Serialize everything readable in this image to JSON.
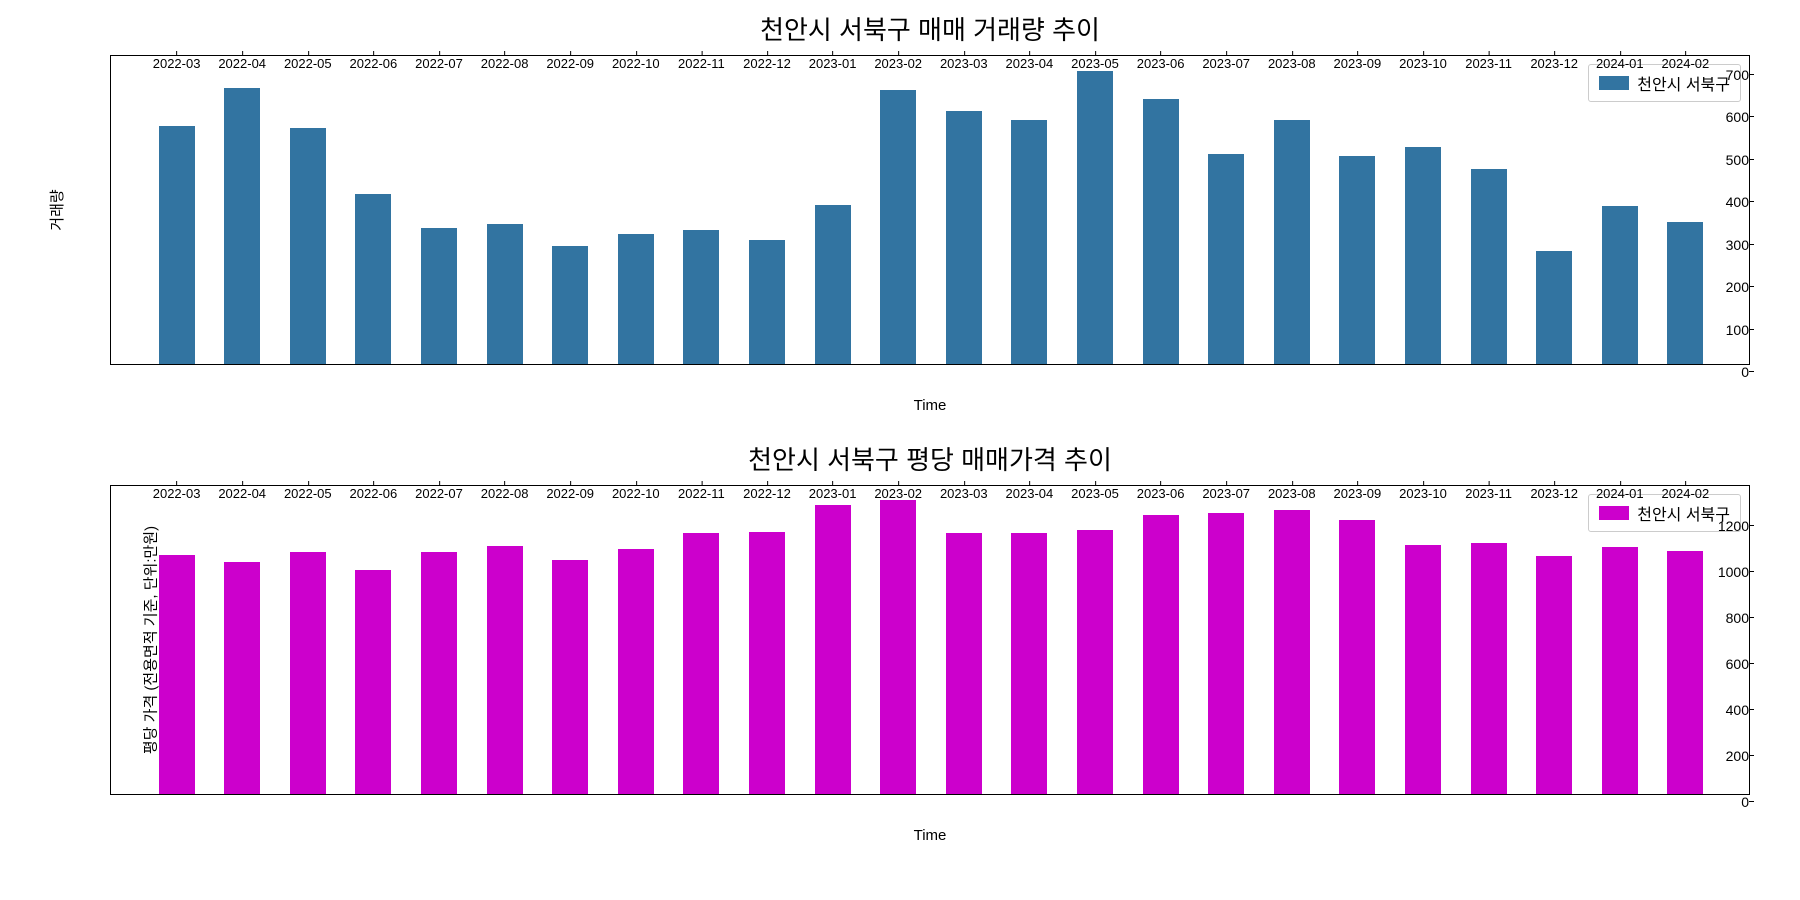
{
  "chart1": {
    "type": "bar",
    "title": "천안시 서북구 매매 거래량 추이",
    "ylabel": "거래량",
    "xlabel": "Time",
    "legend_label": "천안시 서북구",
    "bar_color": "#3274a1",
    "background_color": "#ffffff",
    "border_color": "#000000",
    "title_fontsize": 26,
    "label_fontsize": 15,
    "tick_fontsize": 14,
    "ylim": [
      0,
      730
    ],
    "yticks": [
      0,
      100,
      200,
      300,
      400,
      500,
      600,
      700
    ],
    "bar_width": 0.55,
    "categories": [
      "2022-03",
      "2022-04",
      "2022-05",
      "2022-06",
      "2022-07",
      "2022-08",
      "2022-09",
      "2022-10",
      "2022-11",
      "2022-12",
      "2023-01",
      "2023-02",
      "2023-03",
      "2023-04",
      "2023-05",
      "2023-06",
      "2023-07",
      "2023-08",
      "2023-09",
      "2023-10",
      "2023-11",
      "2023-12",
      "2024-01",
      "2024-02"
    ],
    "values": [
      560,
      650,
      555,
      400,
      320,
      330,
      278,
      305,
      315,
      293,
      375,
      645,
      595,
      575,
      690,
      625,
      495,
      575,
      490,
      510,
      460,
      265,
      372,
      335
    ]
  },
  "chart2": {
    "type": "bar",
    "title": "천안시 서북구 평당 매매가격 추이",
    "ylabel": "평당 가격 (전용면적 기준, 단위:만원)",
    "xlabel": "Time",
    "legend_label": "천안시 서북구",
    "bar_color": "#cc00cc",
    "background_color": "#ffffff",
    "border_color": "#000000",
    "title_fontsize": 26,
    "label_fontsize": 15,
    "tick_fontsize": 14,
    "ylim": [
      0,
      1350
    ],
    "yticks": [
      0,
      200,
      400,
      600,
      800,
      1000,
      1200
    ],
    "bar_width": 0.55,
    "categories": [
      "2022-03",
      "2022-04",
      "2022-05",
      "2022-06",
      "2022-07",
      "2022-08",
      "2022-09",
      "2022-10",
      "2022-11",
      "2022-12",
      "2023-01",
      "2023-02",
      "2023-03",
      "2023-04",
      "2023-05",
      "2023-06",
      "2023-07",
      "2023-08",
      "2023-09",
      "2023-10",
      "2023-11",
      "2023-12",
      "2024-01",
      "2024-02"
    ],
    "values": [
      1040,
      1010,
      1055,
      975,
      1055,
      1080,
      1020,
      1065,
      1135,
      1140,
      1260,
      1280,
      1135,
      1135,
      1150,
      1215,
      1225,
      1235,
      1195,
      1085,
      1095,
      1035,
      1075,
      1060
    ]
  }
}
